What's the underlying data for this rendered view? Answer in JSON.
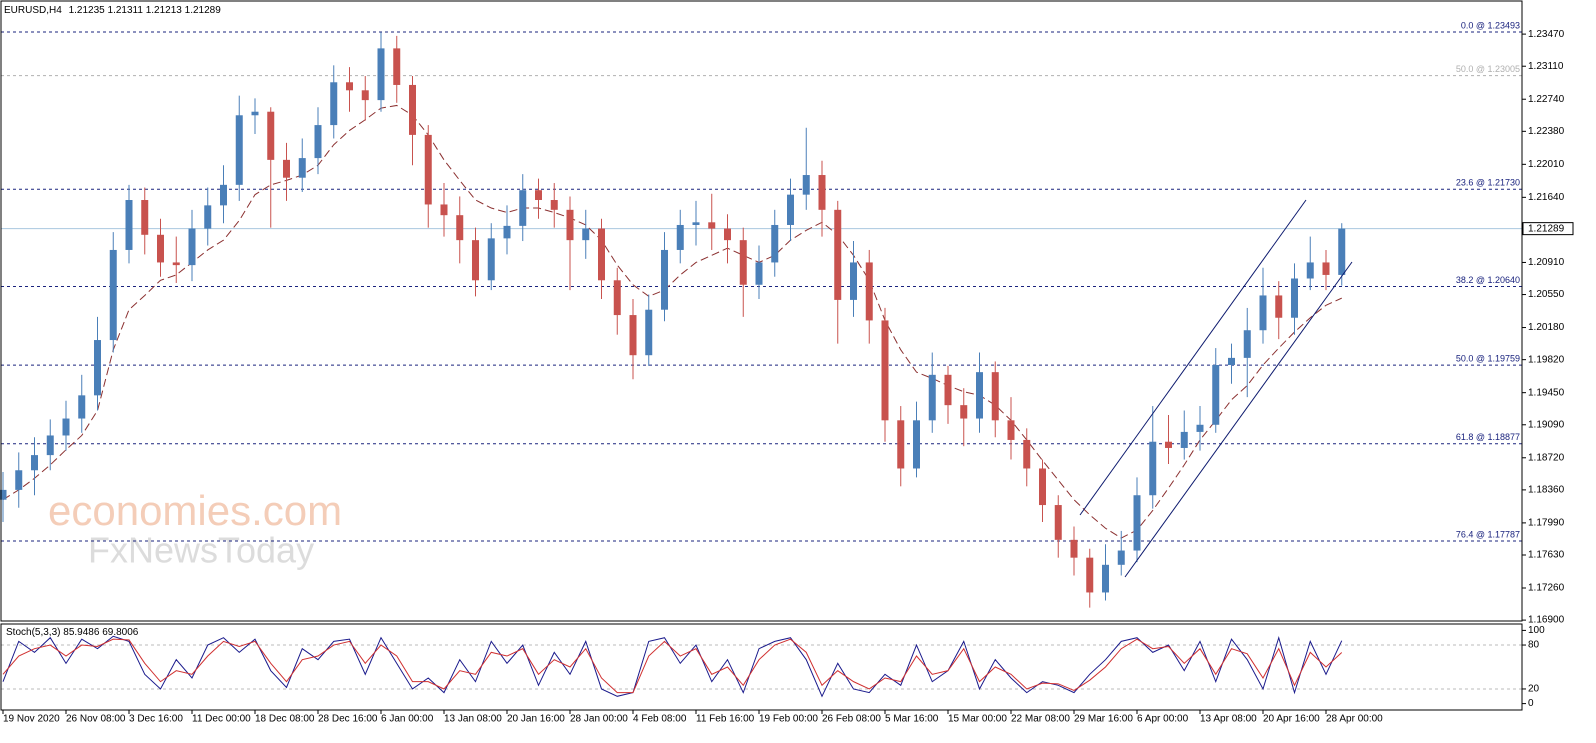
{
  "chart_data": {
    "type": "candlestick",
    "symbol": "EURUSD,H4",
    "quote": {
      "open": 1.21235,
      "high": 1.21311,
      "low": 1.21213,
      "close": 1.21289
    },
    "categories": [
      "19 Nov 2020",
      null,
      null,
      null,
      "26 Nov 08:00",
      null,
      null,
      null,
      "3 Dec 16:00",
      null,
      null,
      null,
      "11 Dec 00:00",
      null,
      null,
      null,
      "18 Dec 08:00",
      null,
      null,
      null,
      "28 Dec 16:00",
      null,
      null,
      null,
      "6 Jan 00:00",
      null,
      null,
      null,
      "13 Jan 08:00",
      null,
      null,
      null,
      "20 Jan 16:00",
      null,
      null,
      null,
      "28 Jan 00:00",
      null,
      null,
      null,
      "4 Feb 08:00",
      null,
      null,
      null,
      "11 Feb 16:00",
      null,
      null,
      null,
      "19 Feb 00:00",
      null,
      null,
      null,
      "26 Feb 08:00",
      null,
      null,
      null,
      "5 Mar 16:00",
      null,
      null,
      null,
      "15 Mar 00:00",
      null,
      null,
      null,
      "22 Mar 08:00",
      null,
      null,
      null,
      "29 Mar 16:00",
      null,
      null,
      null,
      "6 Apr 00:00",
      null,
      null,
      null,
      "13 Apr 08:00",
      null,
      null,
      null,
      "20 Apr 16:00",
      null,
      null,
      null,
      "28 Apr 00:00",
      null
    ],
    "open": [
      1.1825,
      1.1836,
      1.1858,
      1.1875,
      1.1897,
      1.1916,
      1.1942,
      1.2004,
      1.2105,
      1.2161,
      1.2122,
      1.2091,
      1.2088,
      1.2129,
      1.2155,
      1.2178,
      1.2256,
      1.226,
      1.2206,
      1.2186,
      1.2208,
      1.2245,
      1.2293,
      1.2284,
      1.2273,
      1.2331,
      1.229,
      1.2234,
      1.2156,
      1.2144,
      1.2116,
      1.2071,
      1.2118,
      1.2132,
      1.2172,
      1.2161,
      1.215,
      1.2116,
      1.2129,
      1.2071,
      1.2032,
      1.1987,
      1.2038,
      1.2105,
      1.2133,
      1.2136,
      1.2129,
      1.2116,
      1.2066,
      1.2091,
      1.2133,
      1.2167,
      1.2189,
      1.215,
      1.2049,
      1.2091,
      1.2026,
      1.1914,
      1.186,
      1.1914,
      1.1965,
      1.1931,
      1.1916,
      1.1968,
      1.1914,
      1.1892,
      1.186,
      1.1819,
      1.178,
      1.176,
      1.1721,
      1.1752,
      1.1768,
      1.183,
      1.189,
      1.1883,
      1.1901,
      1.1909,
      1.1976,
      1.1984,
      1.2015,
      1.2054,
      1.2029,
      1.2073,
      1.2091,
      1.2077
    ],
    "high": [
      1.1856,
      1.1878,
      1.1895,
      1.1915,
      1.1936,
      1.1965,
      1.203,
      1.2125,
      1.2178,
      1.2175,
      1.214,
      1.212,
      1.215,
      1.2175,
      1.22,
      1.2278,
      1.2275,
      1.2265,
      1.2225,
      1.223,
      1.2265,
      1.2312,
      1.231,
      1.23,
      1.2349,
      1.2345,
      1.23,
      1.2245,
      1.218,
      1.2165,
      1.213,
      1.2135,
      1.2155,
      1.219,
      1.2185,
      1.218,
      1.2165,
      1.215,
      1.214,
      1.2085,
      1.205,
      1.2055,
      1.2125,
      1.215,
      1.216,
      1.2168,
      1.2145,
      1.213,
      1.211,
      1.215,
      1.2185,
      1.2242,
      1.2205,
      1.216,
      1.2115,
      1.2105,
      1.204,
      1.193,
      1.1935,
      1.199,
      1.1975,
      1.195,
      1.199,
      1.198,
      1.194,
      1.1905,
      1.187,
      1.183,
      1.1795,
      1.177,
      1.1775,
      1.179,
      1.185,
      1.193,
      1.192,
      1.1925,
      1.193,
      1.1995,
      1.2,
      1.204,
      1.2085,
      1.207,
      1.209,
      1.212,
      1.2105,
      1.2135
    ],
    "low": [
      1.18,
      1.1816,
      1.183,
      1.1858,
      1.188,
      1.19,
      1.1925,
      1.199,
      1.209,
      1.21,
      1.2075,
      1.2068,
      1.207,
      1.211,
      1.2135,
      1.216,
      1.2235,
      1.213,
      1.216,
      1.217,
      1.219,
      1.223,
      1.226,
      1.225,
      1.226,
      1.227,
      1.22,
      1.213,
      1.212,
      1.209,
      1.2053,
      1.206,
      1.21,
      1.2115,
      1.214,
      1.213,
      1.206,
      1.2095,
      1.205,
      1.201,
      1.196,
      1.1975,
      1.2025,
      1.209,
      1.211,
      1.2105,
      1.209,
      1.203,
      1.205,
      1.2075,
      1.2115,
      1.215,
      1.212,
      1.2,
      1.203,
      1.2,
      1.189,
      1.184,
      1.185,
      1.19,
      1.191,
      1.1885,
      1.19,
      1.1895,
      1.187,
      1.184,
      1.18,
      1.176,
      1.174,
      1.1704,
      1.1712,
      1.174,
      1.1755,
      1.1815,
      1.1865,
      1.187,
      1.188,
      1.19,
      1.1955,
      1.194,
      1.2,
      1.2005,
      1.201,
      1.206,
      1.206,
      1.2065
    ],
    "close": [
      1.1836,
      1.1858,
      1.1875,
      1.1897,
      1.1916,
      1.1942,
      1.2004,
      1.2105,
      1.2161,
      1.2122,
      1.2091,
      1.2088,
      1.2129,
      1.2155,
      1.2178,
      1.2256,
      1.226,
      1.2206,
      1.2186,
      1.2208,
      1.2245,
      1.2293,
      1.2284,
      1.2273,
      1.2331,
      1.229,
      1.2234,
      1.2156,
      1.2144,
      1.2116,
      1.2071,
      1.2118,
      1.2132,
      1.2172,
      1.2161,
      1.215,
      1.2116,
      1.2129,
      1.2071,
      1.2032,
      1.1987,
      1.2038,
      1.2105,
      1.2133,
      1.2136,
      1.2129,
      1.2116,
      1.2066,
      1.2091,
      1.2133,
      1.2167,
      1.2189,
      1.215,
      1.2049,
      1.2091,
      1.2026,
      1.1914,
      1.186,
      1.1914,
      1.1965,
      1.1931,
      1.1916,
      1.1968,
      1.1914,
      1.1892,
      1.186,
      1.1819,
      1.178,
      1.176,
      1.1721,
      1.1752,
      1.1768,
      1.183,
      1.189,
      1.1883,
      1.1901,
      1.1909,
      1.1976,
      1.1984,
      1.2015,
      1.2054,
      1.2029,
      1.2073,
      1.2091,
      1.2077,
      1.21289
    ],
    "up_color": "#4a7fb8",
    "down_color": "#c8524e",
    "ma": {
      "color": "#8b3030",
      "dashed": true,
      "values": [
        1.1825,
        1.1836,
        1.1849,
        1.1864,
        1.1881,
        1.1897,
        1.1925,
        1.1993,
        1.2038,
        1.2054,
        1.2071,
        1.2077,
        1.2091,
        1.2105,
        1.2116,
        1.2138,
        1.2167,
        1.2178,
        1.2183,
        1.2189,
        1.22,
        1.2223,
        1.2239,
        1.2251,
        1.2264,
        1.2267,
        1.2256,
        1.2234,
        1.2206,
        1.2183,
        1.2161,
        1.2152,
        1.2147,
        1.2152,
        1.2152,
        1.2147,
        1.2141,
        1.2133,
        1.2116,
        1.2088,
        1.2066,
        1.2053,
        1.206,
        1.2077,
        1.2091,
        1.2099,
        1.2107,
        1.2099,
        1.2091,
        1.2099,
        1.2116,
        1.2127,
        1.2136,
        1.2122,
        1.2099,
        1.2071,
        1.2026,
        1.1993,
        1.1968,
        1.1961,
        1.1953,
        1.1946,
        1.1942,
        1.1931,
        1.1914,
        1.1892,
        1.1869,
        1.1847,
        1.1825,
        1.1808,
        1.1793,
        1.1782,
        1.1791,
        1.1813,
        1.1838,
        1.1864,
        1.1892,
        1.1914,
        1.1937,
        1.1953,
        1.1976,
        1.1995,
        1.2013,
        1.2029,
        1.2043,
        1.2051
      ]
    },
    "ylim": [
      1.1689,
      1.2383
    ],
    "yticks": [
      {
        "value": 1.169,
        "label": "1.16900"
      },
      {
        "value": 1.1726,
        "label": "1.17260"
      },
      {
        "value": 1.1763,
        "label": "1.17630"
      },
      {
        "value": 1.1799,
        "label": "1.17990"
      },
      {
        "value": 1.1836,
        "label": "1.18360"
      },
      {
        "value": 1.1872,
        "label": "1.18720"
      },
      {
        "value": 1.1909,
        "label": "1.19090"
      },
      {
        "value": 1.1945,
        "label": "1.19450"
      },
      {
        "value": 1.1982,
        "label": "1.19820"
      },
      {
        "value": 1.2018,
        "label": "1.20180"
      },
      {
        "value": 1.2055,
        "label": "1.20550"
      },
      {
        "value": 1.2091,
        "label": "1.20910"
      },
      {
        "value": 1.2164,
        "label": "1.21640"
      },
      {
        "value": 1.2201,
        "label": "1.22010"
      },
      {
        "value": 1.2238,
        "label": "1.22380"
      },
      {
        "value": 1.2274,
        "label": "1.22740"
      },
      {
        "value": 1.2311,
        "label": "1.23110"
      },
      {
        "value": 1.2347,
        "label": "1.23470"
      }
    ],
    "current_price_color": "#a9c7df",
    "fib_levels": [
      {
        "value": 1.23493,
        "label": "0.0 @ 1.23493",
        "color": "#1a237e"
      },
      {
        "value": 1.23005,
        "label": "50.0 @ 1.23005",
        "color": "#b0b0b0"
      },
      {
        "value": 1.2173,
        "label": "23.6 @ 1.21730",
        "color": "#1a237e"
      },
      {
        "value": 1.2064,
        "label": "38.2 @ 1.20640",
        "color": "#1a237e"
      },
      {
        "value": 1.19759,
        "label": "50.0 @ 1.19759",
        "color": "#1a237e"
      },
      {
        "value": 1.18877,
        "label": "61.8 @ 1.18877",
        "color": "#1a237e"
      },
      {
        "value": 1.17787,
        "label": "76.4 @ 1.17787",
        "color": "#1a237e"
      }
    ],
    "indicator": {
      "title": "Stoch(5,3,3)",
      "ylim": [
        -6,
        106
      ],
      "yticks": [
        0,
        20,
        80,
        100
      ],
      "levels": [
        20,
        80
      ],
      "series": [
        {
          "color": "#1a1a8c",
          "values": [
            30,
            85,
            70,
            90,
            55,
            88,
            75,
            92,
            85,
            40,
            20,
            60,
            35,
            80,
            90,
            70,
            88,
            45,
            22,
            75,
            60,
            85,
            88,
            40,
            90,
            55,
            20,
            35,
            15,
            60,
            30,
            85,
            55,
            80,
            25,
            70,
            40,
            85,
            20,
            10,
            15,
            85,
            90,
            55,
            80,
            30,
            60,
            15,
            75,
            85,
            90,
            60,
            10,
            55,
            20,
            15,
            40,
            25,
            80,
            30,
            45,
            85,
            20,
            60,
            35,
            15,
            30,
            25,
            15,
            40,
            60,
            85,
            90,
            70,
            80,
            45,
            85,
            30,
            88,
            60,
            20,
            90,
            15,
            85,
            40,
            85.9486
          ]
        },
        {
          "color": "#d03030",
          "values": [
            40,
            65,
            75,
            80,
            65,
            80,
            78,
            88,
            87,
            55,
            30,
            45,
            40,
            65,
            85,
            78,
            85,
            55,
            30,
            60,
            65,
            80,
            85,
            55,
            80,
            65,
            30,
            30,
            20,
            45,
            40,
            70,
            65,
            75,
            40,
            60,
            50,
            75,
            35,
            15,
            15,
            65,
            85,
            65,
            75,
            40,
            50,
            25,
            60,
            80,
            88,
            70,
            25,
            45,
            30,
            20,
            35,
            30,
            65,
            40,
            45,
            75,
            30,
            50,
            40,
            20,
            28,
            27,
            18,
            32,
            50,
            75,
            88,
            75,
            78,
            55,
            75,
            40,
            75,
            68,
            35,
            75,
            25,
            70,
            50,
            69.8006
          ]
        }
      ]
    },
    "watermark": [
      "economies.com",
      "FxNewsToday"
    ]
  }
}
